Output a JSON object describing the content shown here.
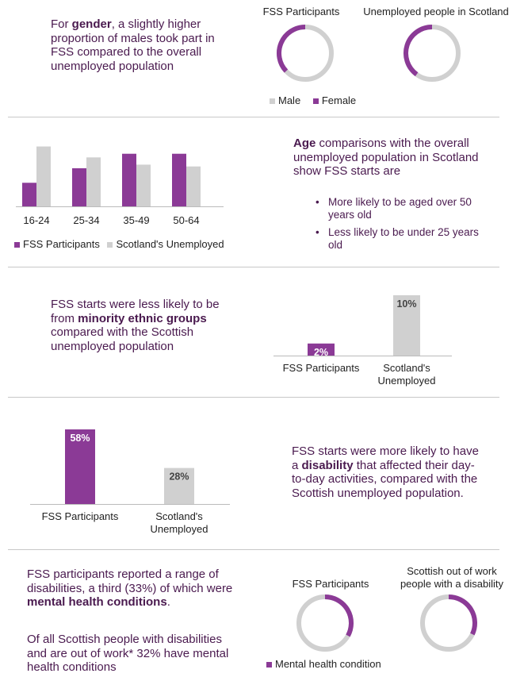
{
  "colors": {
    "purple": "#8b3a96",
    "grey": "#d0d0d0",
    "text_purple": "#4a1a4f"
  },
  "gender": {
    "text": {
      "pre": "For ",
      "bold": "gender",
      "post": ", a slightly higher proportion of males took part in FSS compared to the overall unemployed population"
    },
    "donut_labels": [
      "FSS Participants",
      "Unemployed people in Scotland"
    ],
    "legend": [
      "Male",
      "Female"
    ]
  },
  "age": {
    "text_bold": "Age",
    "text_rest": " comparisons with the overall unemployed population in Scotland show FSS starts are",
    "bullets": [
      "More likely to be aged over 50 years old",
      "Less likely to be under 25 years old"
    ],
    "legend": [
      "FSS Participants",
      "Scotland's Unemployed"
    ]
  },
  "ethnic": {
    "text": {
      "pre": "FSS starts were less likely to be from ",
      "bold": "minority ethnic groups",
      "post": " compared with the Scottish unemployed population"
    },
    "categories": [
      "FSS Participants",
      "Scotland's Unemployed"
    ]
  },
  "disability": {
    "text": {
      "pre": "FSS starts were more likely to have a ",
      "bold": "disability",
      "post": " that affected their day-to-day activities, compared with the Scottish unemployed population."
    },
    "categories": [
      "FSS Participants",
      "Scotland's Unemployed"
    ]
  },
  "mental": {
    "text1": {
      "pre": "FSS participants reported a range of disabilities, a third (33%) of which were ",
      "bold": "mental health conditions",
      "post": "."
    },
    "text2": "Of all Scottish people with disabilities and are out of work* 32% have mental health conditions",
    "donut_labels": [
      "FSS Participants",
      "Scottish out of work people with a disability"
    ],
    "legend": "Mental health condition"
  },
  "chart_data": [
    {
      "type": "pie",
      "labels": [
        "Male",
        "Female"
      ],
      "series": [
        {
          "name": "FSS Participants",
          "values": [
            63,
            37
          ]
        },
        {
          "name": "Unemployed people in Scotland",
          "values": [
            60,
            40
          ]
        }
      ]
    },
    {
      "type": "bar",
      "categories": [
        "16-24",
        "25-34",
        "35-49",
        "50-64"
      ],
      "series": [
        {
          "name": "FSS Participants",
          "values": [
            13,
            21,
            29,
            29
          ]
        },
        {
          "name": "Scotland's Unemployed",
          "values": [
            33,
            27,
            23,
            22
          ]
        }
      ]
    },
    {
      "type": "bar",
      "categories": [
        "FSS Participants",
        "Scotland's Unemployed"
      ],
      "values": [
        2,
        10
      ],
      "value_labels": [
        "2%",
        "10%"
      ]
    },
    {
      "type": "bar",
      "categories": [
        "FSS Participants",
        "Scotland's Unemployed"
      ],
      "values": [
        58,
        28
      ],
      "value_labels": [
        "58%",
        "28%"
      ]
    },
    {
      "type": "pie",
      "labels": [
        "Mental health condition"
      ],
      "series": [
        {
          "name": "FSS Participants",
          "values": [
            33
          ]
        },
        {
          "name": "Scottish out of work people with a disability",
          "values": [
            32
          ]
        }
      ]
    }
  ]
}
